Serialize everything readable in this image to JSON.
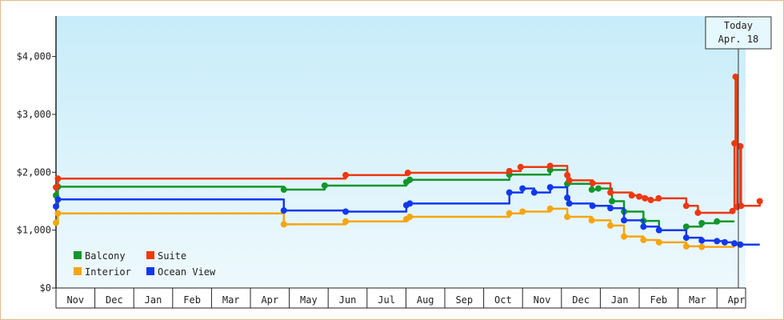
{
  "chart_data": {
    "type": "line",
    "step": true,
    "title": "",
    "xlabel": "",
    "ylabel": "",
    "ylim": [
      0,
      4700
    ],
    "y_ticks": [
      0,
      1000,
      2000,
      3000,
      4000
    ],
    "y_tick_labels": [
      "$0",
      "$1,000",
      "$2,000",
      "$3,000",
      "$4,000"
    ],
    "x_range": [
      0,
      18.1
    ],
    "x_ticks": [
      "Nov",
      "Dec",
      "Jan",
      "Feb",
      "Mar",
      "Apr",
      "May",
      "Jun",
      "Jul",
      "Aug",
      "Sep",
      "Oct",
      "Nov",
      "Dec",
      "Jan",
      "Feb",
      "Mar",
      "Apr"
    ],
    "grid": false,
    "legend_position": "bottom-left",
    "today_marker": {
      "line1": "Today",
      "line2": "Apr. 18",
      "x": 17.55
    },
    "series": [
      {
        "name": "Balcony",
        "color": "#10962b",
        "points": [
          [
            0,
            1600
          ],
          [
            0.05,
            1750
          ],
          [
            5.85,
            1750
          ],
          [
            5.86,
            1700
          ],
          [
            6.9,
            1700
          ],
          [
            6.91,
            1770
          ],
          [
            9.0,
            1770
          ],
          [
            9.01,
            1830
          ],
          [
            9.1,
            1870
          ],
          [
            11.65,
            1870
          ],
          [
            11.66,
            1960
          ],
          [
            12.0,
            1960
          ],
          [
            12.7,
            1960
          ],
          [
            12.71,
            2040
          ],
          [
            13.1,
            2040
          ],
          [
            13.15,
            1800
          ],
          [
            13.75,
            1800
          ],
          [
            13.78,
            1700
          ],
          [
            13.95,
            1720
          ],
          [
            14.3,
            1500
          ],
          [
            14.6,
            1500
          ],
          [
            14.61,
            1320
          ],
          [
            15.1,
            1320
          ],
          [
            15.11,
            1160
          ],
          [
            15.5,
            1160
          ],
          [
            15.51,
            1000
          ],
          [
            16.2,
            1000
          ],
          [
            16.21,
            1060
          ],
          [
            16.6,
            1060
          ],
          [
            16.61,
            1120
          ],
          [
            17.0,
            1150
          ],
          [
            17.45,
            1150
          ]
        ]
      },
      {
        "name": "Suite",
        "color": "#ee3810",
        "points": [
          [
            0,
            1740
          ],
          [
            0.05,
            1890
          ],
          [
            5.85,
            1890
          ],
          [
            6.9,
            1890
          ],
          [
            7.45,
            1950
          ],
          [
            9.0,
            1950
          ],
          [
            9.05,
            1990
          ],
          [
            11.65,
            1990
          ],
          [
            11.66,
            2020
          ],
          [
            11.95,
            2090
          ],
          [
            12.7,
            2090
          ],
          [
            12.71,
            2110
          ],
          [
            13.1,
            2110
          ],
          [
            13.15,
            1950
          ],
          [
            13.2,
            1860
          ],
          [
            13.75,
            1860
          ],
          [
            13.8,
            1810
          ],
          [
            14.25,
            1810
          ],
          [
            14.26,
            1650
          ],
          [
            14.5,
            1650
          ],
          [
            14.8,
            1650
          ],
          [
            14.81,
            1600
          ],
          [
            15.0,
            1580
          ],
          [
            15.15,
            1550
          ],
          [
            15.3,
            1520
          ],
          [
            15.5,
            1550
          ],
          [
            16.2,
            1550
          ],
          [
            16.21,
            1420
          ],
          [
            16.5,
            1420
          ],
          [
            16.51,
            1300
          ],
          [
            16.8,
            1300
          ],
          [
            17.0,
            1300
          ],
          [
            17.3,
            1300
          ],
          [
            17.4,
            1330
          ],
          [
            17.45,
            2500
          ],
          [
            17.48,
            3650
          ],
          [
            17.52,
            1400
          ],
          [
            17.6,
            2450
          ],
          [
            17.62,
            1420
          ],
          [
            18.1,
            1500
          ]
        ]
      },
      {
        "name": "Interior",
        "color": "#f5a512",
        "points": [
          [
            0,
            1130
          ],
          [
            0.05,
            1290
          ],
          [
            5.85,
            1290
          ],
          [
            5.86,
            1100
          ],
          [
            6.9,
            1100
          ],
          [
            7.45,
            1150
          ],
          [
            9.0,
            1150
          ],
          [
            9.01,
            1190
          ],
          [
            9.1,
            1230
          ],
          [
            11.65,
            1230
          ],
          [
            11.66,
            1290
          ],
          [
            12.0,
            1320
          ],
          [
            12.7,
            1320
          ],
          [
            12.71,
            1370
          ],
          [
            13.1,
            1370
          ],
          [
            13.15,
            1230
          ],
          [
            13.75,
            1230
          ],
          [
            13.78,
            1170
          ],
          [
            14.25,
            1170
          ],
          [
            14.26,
            1080
          ],
          [
            14.6,
            1080
          ],
          [
            14.61,
            890
          ],
          [
            15.1,
            890
          ],
          [
            15.11,
            830
          ],
          [
            15.5,
            830
          ],
          [
            15.51,
            790
          ],
          [
            16.2,
            790
          ],
          [
            16.21,
            720
          ],
          [
            16.6,
            720
          ],
          [
            16.61,
            710
          ],
          [
            17.0,
            710
          ],
          [
            17.45,
            710
          ]
        ]
      },
      {
        "name": "Ocean View",
        "color": "#1238ee",
        "points": [
          [
            0,
            1410
          ],
          [
            0.05,
            1530
          ],
          [
            5.85,
            1530
          ],
          [
            5.86,
            1340
          ],
          [
            6.9,
            1340
          ],
          [
            7.45,
            1320
          ],
          [
            9.0,
            1320
          ],
          [
            9.01,
            1430
          ],
          [
            9.1,
            1460
          ],
          [
            11.65,
            1460
          ],
          [
            11.66,
            1650
          ],
          [
            12.0,
            1720
          ],
          [
            12.3,
            1650
          ],
          [
            12.7,
            1650
          ],
          [
            12.71,
            1740
          ],
          [
            13.1,
            1740
          ],
          [
            13.15,
            1560
          ],
          [
            13.2,
            1460
          ],
          [
            13.75,
            1460
          ],
          [
            13.8,
            1420
          ],
          [
            14.25,
            1420
          ],
          [
            14.26,
            1380
          ],
          [
            14.6,
            1380
          ],
          [
            14.61,
            1170
          ],
          [
            15.1,
            1170
          ],
          [
            15.11,
            1060
          ],
          [
            15.5,
            1060
          ],
          [
            15.51,
            1000
          ],
          [
            16.2,
            1000
          ],
          [
            16.21,
            870
          ],
          [
            16.6,
            870
          ],
          [
            16.61,
            820
          ],
          [
            17.0,
            810
          ],
          [
            17.2,
            790
          ],
          [
            17.45,
            770
          ],
          [
            17.6,
            750
          ],
          [
            18.1,
            750
          ]
        ]
      }
    ]
  }
}
